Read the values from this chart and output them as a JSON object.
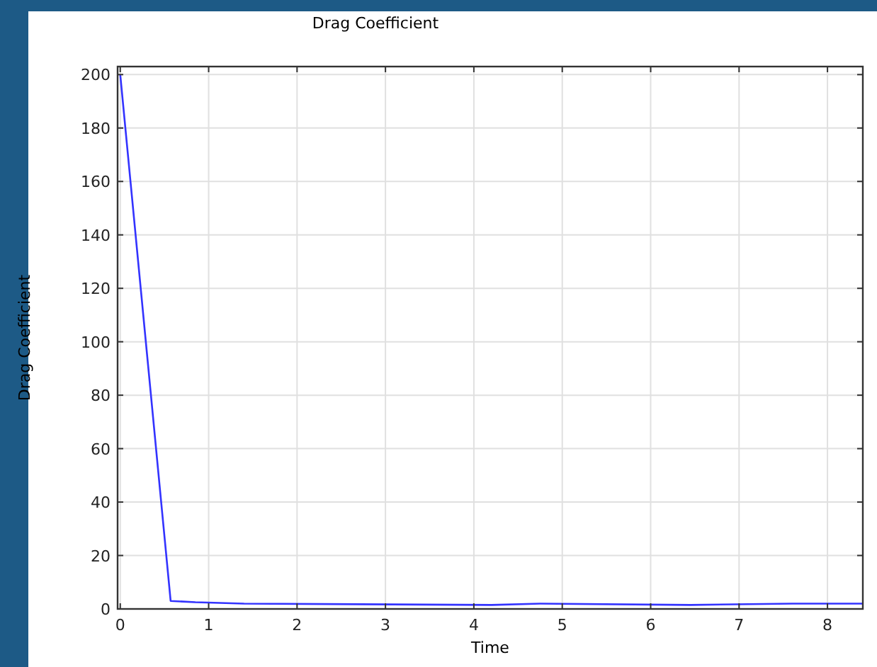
{
  "chart_data": {
    "type": "line",
    "title": "Drag Coefficient",
    "xlabel": "Time",
    "ylabel": "Drag Coefficient",
    "xlim": [
      -0.03,
      8.4
    ],
    "ylim": [
      0,
      203
    ],
    "xticks": [
      0,
      1,
      2,
      3,
      4,
      5,
      6,
      7,
      8
    ],
    "yticks": [
      0,
      20,
      40,
      60,
      80,
      100,
      120,
      140,
      160,
      180,
      200
    ],
    "grid": true,
    "series": [
      {
        "color": "#3333ff",
        "x": [
          0,
          0.57,
          0.85,
          1.4,
          4.2,
          4.75,
          6.45,
          7.6,
          8.4
        ],
        "values": [
          200,
          3,
          2.5,
          2,
          1.5,
          2,
          1.5,
          2,
          2
        ]
      }
    ]
  }
}
